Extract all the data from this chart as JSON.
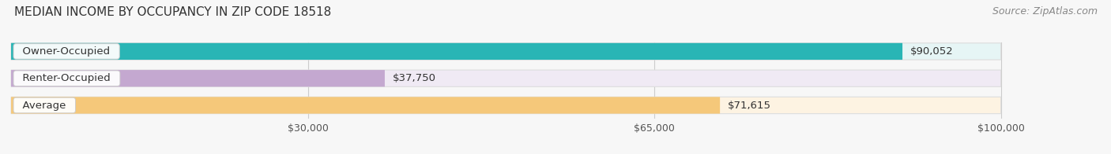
{
  "title": "MEDIAN INCOME BY OCCUPANCY IN ZIP CODE 18518",
  "source": "Source: ZipAtlas.com",
  "categories": [
    "Owner-Occupied",
    "Renter-Occupied",
    "Average"
  ],
  "values": [
    90052,
    37750,
    71615
  ],
  "bar_colors": [
    "#29b5b5",
    "#c4a8d0",
    "#f5c87a"
  ],
  "bar_bg_colors": [
    "#e6f5f5",
    "#f0eaf4",
    "#fdf3e2"
  ],
  "value_labels": [
    "$90,052",
    "$37,750",
    "$71,615"
  ],
  "xmin": 0,
  "xmax": 100000,
  "xticks": [
    30000,
    65000,
    100000
  ],
  "xtick_labels": [
    "$30,000",
    "$65,000",
    "$100,000"
  ],
  "title_fontsize": 11,
  "source_fontsize": 9,
  "label_fontsize": 9.5,
  "value_fontsize": 9.5,
  "background_color": "#f7f7f7"
}
